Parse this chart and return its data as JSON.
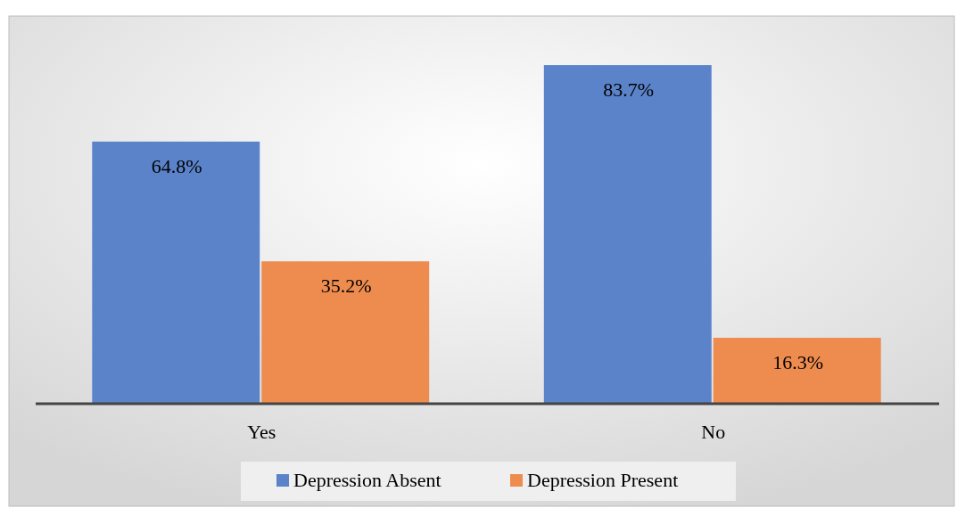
{
  "chart_data": {
    "type": "bar",
    "categories": [
      "Yes",
      "No"
    ],
    "series": [
      {
        "name": "Depression Absent",
        "color": "#5b83c9",
        "values": [
          64.8,
          83.7
        ],
        "value_labels": [
          "64.8%",
          "83.7%"
        ]
      },
      {
        "name": "Depression Present",
        "color": "#ed8c4e",
        "values": [
          35.2,
          16.3
        ],
        "value_labels": [
          "35.2%",
          "16.3%"
        ]
      }
    ],
    "legend": "bottom",
    "grid": false
  }
}
